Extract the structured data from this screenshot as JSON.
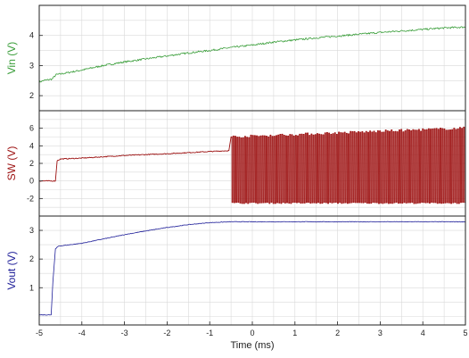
{
  "chart_data": [
    {
      "type": "line",
      "ylabel": "Vin (V)",
      "color": "#3a9e3a",
      "xlim": [
        -5,
        5
      ],
      "ylim": [
        1.5,
        5
      ],
      "yticks": [
        "2",
        "3",
        "4"
      ],
      "grid": true,
      "series": [
        {
          "x": [
            -5,
            -4.9,
            -4.7,
            -4.6,
            -4.5,
            -4,
            -3.5,
            -3,
            -2.5,
            -2,
            -1.5,
            -1,
            -0.5,
            0,
            0.5,
            1,
            1.5,
            2,
            2.5,
            3,
            3.5,
            4,
            4.5,
            5
          ],
          "values": [
            2.45,
            2.5,
            2.55,
            2.7,
            2.72,
            2.85,
            3.0,
            3.12,
            3.22,
            3.32,
            3.42,
            3.5,
            3.6,
            3.68,
            3.78,
            3.85,
            3.92,
            3.98,
            4.04,
            4.1,
            4.15,
            4.2,
            4.25,
            4.28
          ],
          "noise": 0.03
        }
      ]
    },
    {
      "type": "line",
      "ylabel": "SW (V)",
      "color": "#9c1010",
      "xlim": [
        -5,
        5
      ],
      "ylim": [
        -4,
        8
      ],
      "yticks": [
        "-2",
        "0",
        "2",
        "4",
        "6"
      ],
      "grid": true,
      "series": [
        {
          "x": [
            -5,
            -4.62,
            -4.58,
            -4.5,
            -4,
            -3,
            -2,
            -1,
            -0.55
          ],
          "values": [
            0,
            0,
            2.3,
            2.5,
            2.6,
            2.9,
            3.1,
            3.35,
            3.45
          ],
          "noise": 0.05,
          "switching": {
            "x_start": -0.5,
            "x_end": 5,
            "low": -2.5,
            "high_start": 5.0,
            "high_end": 6.0,
            "cycles": 120
          }
        }
      ]
    },
    {
      "type": "line",
      "ylabel": "Vout (V)",
      "color": "#1f1f99",
      "xlabel": "Time (ms)",
      "xlim": [
        -5,
        5
      ],
      "ylim": [
        -0.3,
        3.5
      ],
      "yticks": [
        "1",
        "2",
        "3"
      ],
      "xticks": [
        "-5",
        "-4",
        "-3",
        "-2",
        "-1",
        "0",
        "1",
        "2",
        "3",
        "4",
        "5"
      ],
      "grid": true,
      "series": [
        {
          "x": [
            -5,
            -4.72,
            -4.68,
            -4.62,
            -4.55,
            -4,
            -3.5,
            -3,
            -2.5,
            -2,
            -1.5,
            -1,
            -0.5,
            0,
            1,
            2,
            3,
            4,
            5
          ],
          "values": [
            0.05,
            0.05,
            1.2,
            2.35,
            2.45,
            2.55,
            2.7,
            2.85,
            2.98,
            3.1,
            3.2,
            3.27,
            3.3,
            3.3,
            3.3,
            3.3,
            3.3,
            3.3,
            3.3
          ],
          "noise": 0.01
        }
      ]
    }
  ]
}
